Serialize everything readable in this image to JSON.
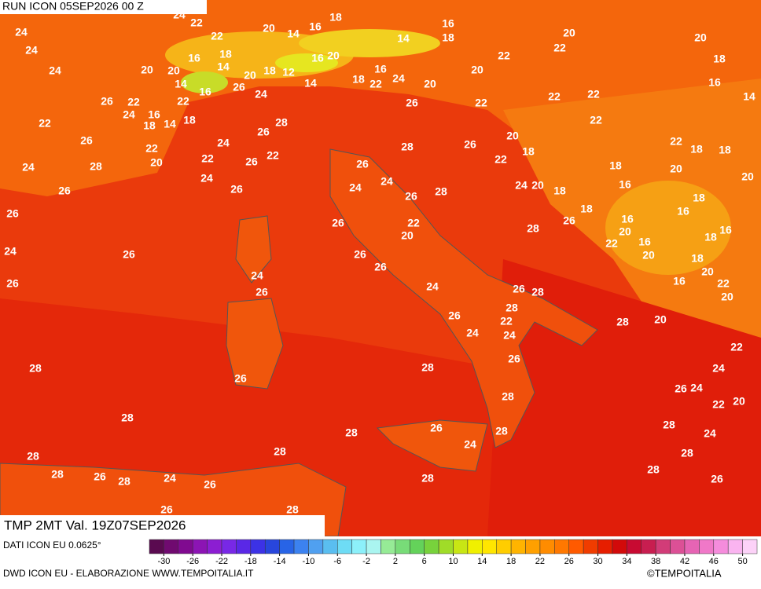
{
  "header": {
    "run": "RUN ICON 05SEP2026 00 Z"
  },
  "map_labels": [
    24,
    24,
    24,
    22,
    26,
    22,
    24,
    26,
    28,
    24,
    26,
    26,
    24,
    26,
    28,
    28,
    28,
    26,
    28,
    24,
    26,
    26,
    26,
    28,
    26,
    24,
    26,
    26,
    24,
    26,
    22,
    24,
    26,
    28,
    24,
    26,
    16,
    22,
    16,
    18,
    14,
    18,
    22,
    20,
    22,
    20,
    20,
    14,
    16,
    18,
    14,
    20,
    18,
    12,
    14,
    16,
    20,
    20,
    14,
    16,
    18,
    24,
    22,
    22,
    18,
    22,
    16,
    24,
    20,
    26,
    16,
    18,
    14,
    22,
    20,
    22,
    20,
    22,
    22,
    22,
    22,
    20,
    18,
    16,
    14,
    20,
    18,
    22,
    26,
    28,
    26,
    24,
    24,
    26,
    28,
    24,
    20,
    18,
    18,
    26,
    28,
    18,
    16,
    22,
    18,
    18,
    20,
    18,
    16,
    20,
    16,
    20,
    16,
    22,
    20,
    18,
    16,
    18,
    20,
    16,
    22,
    20,
    26,
    22,
    20,
    26,
    26,
    24,
    26,
    28,
    28,
    26,
    22,
    24,
    24,
    28,
    20,
    26,
    28,
    22,
    24,
    26,
    24,
    22,
    20,
    28,
    28,
    26,
    24,
    28,
    28,
    28,
    28,
    24,
    28,
    28,
    26,
    28
  ],
  "title": "TMP 2MT Val. 19Z07SEP2026",
  "source": "DATI ICON EU 0.0625°",
  "credit": "DWD ICON EU - ELABORAZIONE WWW.TEMPOITALIA.IT",
  "copyright": "©TEMPOITALIA",
  "colorbar": {
    "range": [
      -32,
      52
    ],
    "ticks": [
      -30,
      -26,
      -22,
      -18,
      -14,
      -10,
      -6,
      -2,
      2,
      6,
      10,
      14,
      18,
      22,
      26,
      30,
      34,
      38,
      42,
      46,
      50
    ],
    "colors": [
      "#5a0a50",
      "#700a70",
      "#800a90",
      "#8c14b4",
      "#8c1ed2",
      "#7828e6",
      "#5a28e6",
      "#3c32e6",
      "#2846dc",
      "#2864e6",
      "#3c82f0",
      "#50a0f0",
      "#5abef0",
      "#6edcf5",
      "#8cf0fa",
      "#aaf5f0",
      "#96eb96",
      "#78dc78",
      "#64d25a",
      "#78d23c",
      "#a0dc28",
      "#c8e614",
      "#f0f000",
      "#ffe600",
      "#ffcd00",
      "#ffb400",
      "#ffa000",
      "#ff8c00",
      "#ff7800",
      "#ff5a00",
      "#f03c00",
      "#e61e00",
      "#d20a0a",
      "#c80a32",
      "#c81e50",
      "#d23c78",
      "#dc5096",
      "#e664b4",
      "#f078c8",
      "#f58cdc",
      "#fab4f0",
      "#fcd2f8"
    ]
  }
}
